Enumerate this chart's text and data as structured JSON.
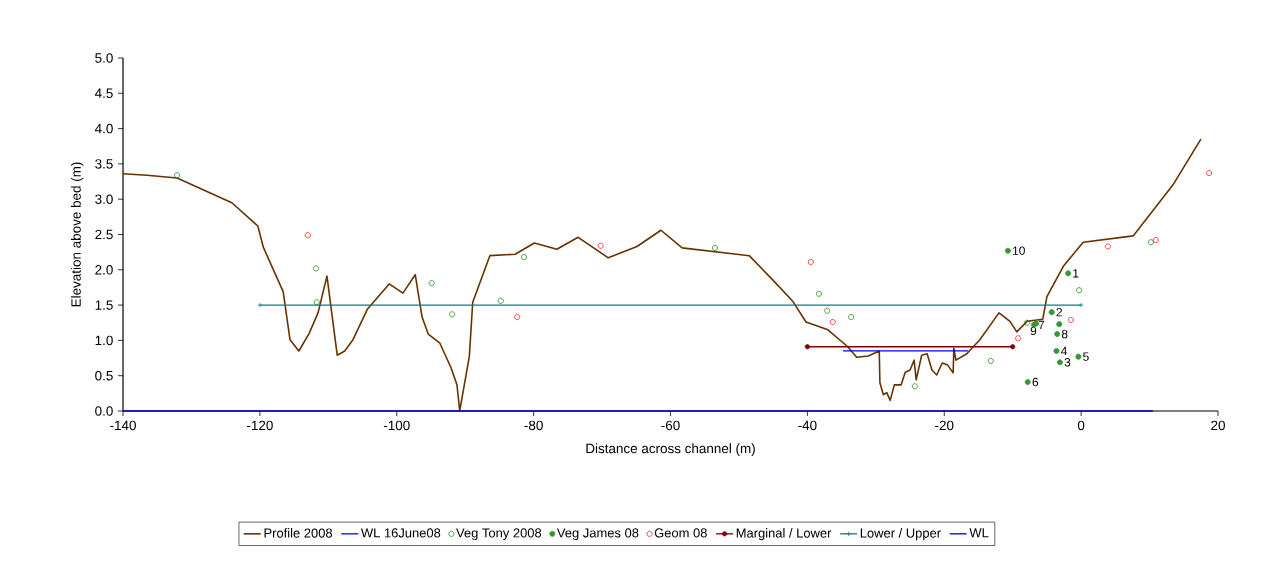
{
  "chart_data": {
    "type": "line",
    "xlabel": "Distance across channel (m)",
    "ylabel": "Elevation above bed (m)",
    "xlim": [
      -140,
      20
    ],
    "ylim": [
      0,
      5
    ],
    "xticks": [
      -140,
      -120,
      -100,
      -80,
      -60,
      -40,
      -20,
      0,
      20
    ],
    "yticks": [
      {
        "value": 0,
        "label": "0.0"
      },
      {
        "value": 0.5,
        "label": "0.5"
      },
      {
        "value": 1,
        "label": "1.0"
      },
      {
        "value": 1.5,
        "label": "1.5"
      },
      {
        "value": 2,
        "label": "2.0"
      },
      {
        "value": 2.5,
        "label": "2.5"
      },
      {
        "value": 3,
        "label": "3.0"
      },
      {
        "value": 3.5,
        "label": "3.5"
      },
      {
        "value": 4,
        "label": "4.0"
      },
      {
        "value": 4.5,
        "label": "4.5"
      },
      {
        "value": 5,
        "label": "5.0"
      }
    ],
    "grid": false,
    "legend": "bottom",
    "series": [
      {
        "name": "Profile 2008",
        "color": "#663300",
        "marker": "none",
        "x": [
          -140,
          -136.5,
          -132.1,
          -124.1,
          -120.3,
          -119.5,
          -116.6,
          -115.6,
          -114.3,
          -112.8,
          -111.5,
          -110.2,
          -108.7,
          -107.6,
          -106.4,
          -104.3,
          -101.1,
          -99.1,
          -97.3,
          -96.3,
          -95.4,
          -93.7,
          -92.1,
          -91.2,
          -90.8,
          -89.4,
          -88.9,
          -86.4,
          -82.7,
          -79.9,
          -76.6,
          -73.5,
          -69.1,
          -64.9,
          -61.4,
          -58.3,
          -48.5,
          -45.0,
          -42.1,
          -40.2,
          -37.0,
          -34.1,
          -32.8,
          -31.1,
          -29.5,
          -29.4,
          -28.9,
          -28.4,
          -27.9,
          -27.3,
          -26.3,
          -25.7,
          -25.0,
          -24.4,
          -24.1,
          -23.3,
          -22.5,
          -21.8,
          -21.1,
          -20.3,
          -19.5,
          -18.7,
          -18.6,
          -18.3,
          -16.7,
          -14.8,
          -12.0,
          -10.4,
          -9.4,
          -7.9,
          -5.6,
          -5.0,
          -2.6,
          0.3,
          7.6,
          13.4,
          17.5
        ],
        "values": [
          3.36,
          3.34,
          3.3,
          2.95,
          2.62,
          2.32,
          1.69,
          1.01,
          0.85,
          1.1,
          1.39,
          1.91,
          0.79,
          0.85,
          1.01,
          1.44,
          1.8,
          1.67,
          1.93,
          1.33,
          1.09,
          0.96,
          0.62,
          0.37,
          0,
          0.77,
          1.54,
          2.2,
          2.22,
          2.38,
          2.29,
          2.46,
          2.17,
          2.33,
          2.56,
          2.31,
          2.2,
          1.85,
          1.55,
          1.26,
          1.15,
          0.91,
          0.76,
          0.78,
          0.85,
          0.4,
          0.23,
          0.26,
          0.15,
          0.37,
          0.37,
          0.55,
          0.58,
          0.72,
          0.44,
          0.79,
          0.81,
          0.58,
          0.51,
          0.68,
          0.65,
          0.54,
          0.89,
          0.72,
          0.81,
          1.01,
          1.39,
          1.27,
          1.12,
          1.27,
          1.3,
          1.62,
          2.05,
          2.39,
          2.48,
          3.2,
          3.85
        ]
      },
      {
        "name": "WL 16June08",
        "type": "line",
        "color": "#0000ff",
        "marker": "none",
        "x": [
          -34.8,
          -16.5
        ],
        "values": [
          0.85,
          0.85
        ]
      },
      {
        "name": "Veg Tony 2008",
        "type": "scatter",
        "color": "#008000",
        "marker": "circle",
        "x": [
          -132.1,
          -111.8,
          -111.7,
          -94.9,
          -91.9,
          -84.8,
          -81.4,
          -53.5,
          -38.3,
          -37.1,
          -33.6,
          -24.3,
          -13.2,
          -7.9,
          -0.3,
          10.2
        ],
        "values": [
          3.34,
          2.02,
          1.54,
          1.81,
          1.37,
          1.56,
          2.18,
          2.31,
          1.66,
          1.42,
          1.33,
          0.35,
          0.71,
          1.25,
          1.71,
          2.39
        ]
      },
      {
        "name": "Veg James 08",
        "type": "scatter",
        "color": "#339933",
        "marker": "circle",
        "x": [
          -1.9,
          -4.3,
          -3.1,
          -3.6,
          -0.4,
          -7.8,
          -6.9,
          -3.5,
          -6.6,
          -10.7,
          -3.2
        ],
        "values": [
          1.95,
          1.4,
          0.69,
          0.85,
          0.77,
          0.41,
          1.22,
          1.09,
          1.24,
          2.27,
          1.23
        ]
      },
      {
        "name": "Geom 08",
        "type": "scatter",
        "color": "#ff0000",
        "marker": "circle",
        "x": [
          -113.0,
          -82.4,
          -70.2,
          -39.5,
          -36.3,
          -9.2,
          -1.5,
          3.9,
          10.9,
          18.7
        ],
        "values": [
          2.49,
          1.33,
          2.34,
          2.11,
          1.26,
          1.03,
          1.29,
          2.33,
          2.42,
          3.37
        ]
      },
      {
        "name": "Marginal / Lower",
        "type": "line",
        "color": "#800000",
        "marker": "circle",
        "x": [
          -40,
          -10
        ],
        "values": [
          0.91,
          0.91
        ]
      },
      {
        "name": "Lower / Upper",
        "type": "line",
        "color": "#008080",
        "marker": "cross",
        "x": [
          -120,
          0
        ],
        "values": [
          1.5,
          1.5
        ]
      },
      {
        "name": "WL",
        "type": "line",
        "color": "#0000cc",
        "marker": "none",
        "x": [
          -140,
          10.5
        ],
        "values": [
          0,
          0
        ]
      }
    ],
    "annotations": [
      {
        "text": "1",
        "x": -1.9,
        "y": 1.95
      },
      {
        "text": "2",
        "x": -4.3,
        "y": 1.4
      },
      {
        "text": "3",
        "x": -3.1,
        "y": 0.69
      },
      {
        "text": "4",
        "x": -3.6,
        "y": 0.85
      },
      {
        "text": "5",
        "x": -0.4,
        "y": 0.77
      },
      {
        "text": "6",
        "x": -7.8,
        "y": 0.41
      },
      {
        "text": "7",
        "x": -6.9,
        "y": 1.22
      },
      {
        "text": "8",
        "x": -3.5,
        "y": 1.09
      },
      {
        "text": "9",
        "x": -6.6,
        "y": 1.24
      },
      {
        "text": "10",
        "x": -10.7,
        "y": 2.27
      }
    ]
  }
}
